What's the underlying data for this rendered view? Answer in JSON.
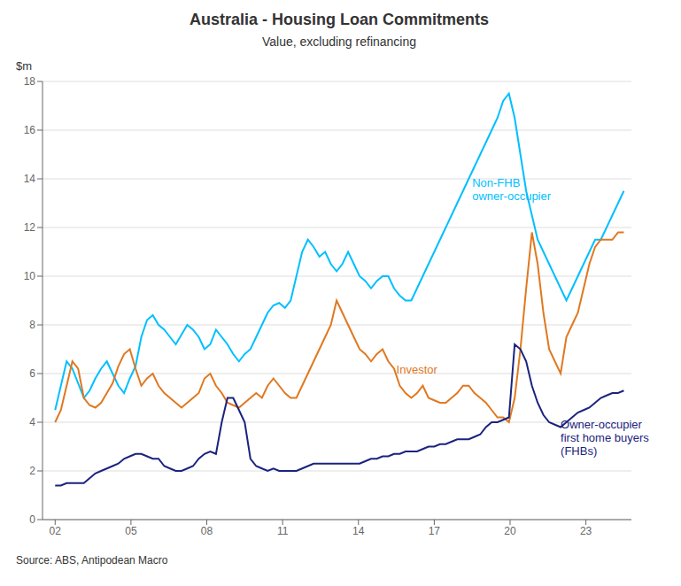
{
  "chart_data": {
    "type": "line",
    "title": "Australia - Housing Loan Commitments",
    "subtitle": "Value, excluding refinancing",
    "ylabel": "$m",
    "source": "Source: ABS, Antipodean Macro",
    "x": [
      2002,
      2002.2272727273,
      2002.4545454545,
      2002.6818181818,
      2002.9090909091,
      2003.1363636364,
      2003.3636363636,
      2003.5909090909,
      2003.8181818182,
      2004.0454545455,
      2004.2727272727,
      2004.5,
      2004.7272727273,
      2004.9545454545,
      2005.1818181818,
      2005.4090909091,
      2005.6363636364,
      2005.8636363636,
      2006.0909090909,
      2006.3181818182,
      2006.5454545455,
      2006.7727272727,
      2007,
      2007.2272727273,
      2007.4545454545,
      2007.6818181818,
      2007.9090909091,
      2008.1363636364,
      2008.3636363636,
      2008.5909090909,
      2008.8181818182,
      2009.0454545455,
      2009.2727272727,
      2009.5,
      2009.7272727273,
      2009.9545454545,
      2010.1818181818,
      2010.4090909091,
      2010.6363636364,
      2010.8636363636,
      2011.0909090909,
      2011.3181818182,
      2011.5454545455,
      2011.7727272727,
      2012,
      2012.2272727273,
      2012.4545454545,
      2012.6818181818,
      2012.9090909091,
      2013.1363636364,
      2013.3636363636,
      2013.5909090909,
      2013.8181818182,
      2014.0454545455,
      2014.2727272727,
      2014.5,
      2014.7272727273,
      2014.9545454545,
      2015.1818181818,
      2015.4090909091,
      2015.6363636364,
      2015.8636363636,
      2016.0909090909,
      2016.3181818182,
      2016.5454545455,
      2016.7727272727,
      2017,
      2017.2272727273,
      2017.4545454545,
      2017.6818181818,
      2017.9090909091,
      2018.1363636364,
      2018.3636363636,
      2018.5909090909,
      2018.8181818182,
      2019.0454545455,
      2019.2727272727,
      2019.5,
      2019.7272727273,
      2019.9545454545,
      2020.1818181818,
      2020.4090909091,
      2020.6363636364,
      2020.8636363636,
      2021.0909090909,
      2021.3181818182,
      2021.5454545455,
      2021.7727272727,
      2022,
      2022.2272727273,
      2022.4545454545,
      2022.6818181818,
      2022.9090909091,
      2023.1363636364,
      2023.3636363636,
      2023.5909090909,
      2023.8181818182,
      2024.0454545455,
      2024.2727272727,
      2024.5
    ],
    "xlim": [
      2001.5,
      2024.8
    ],
    "xticks": [
      {
        "value": 2002,
        "label": "02"
      },
      {
        "value": 2005,
        "label": "05"
      },
      {
        "value": 2008,
        "label": "08"
      },
      {
        "value": 2011,
        "label": "11"
      },
      {
        "value": 2014,
        "label": "14"
      },
      {
        "value": 2017,
        "label": "17"
      },
      {
        "value": 2020,
        "label": "20"
      },
      {
        "value": 2023,
        "label": "23"
      }
    ],
    "ylim": [
      0,
      18
    ],
    "yticks": [
      0,
      2,
      4,
      6,
      8,
      10,
      12,
      14,
      16,
      18
    ],
    "grid": "y",
    "series": [
      {
        "color": "#00BFFF",
        "values": [
          4.5,
          5.5,
          6.5,
          6.2,
          5.6,
          5.0,
          5.3,
          5.8,
          6.2,
          6.5,
          6.0,
          5.5,
          5.2,
          5.8,
          6.3,
          7.5,
          8.2,
          8.4,
          8.0,
          7.8,
          7.5,
          7.2,
          7.6,
          8.0,
          7.8,
          7.5,
          7.0,
          7.2,
          7.8,
          7.5,
          7.2,
          6.8,
          6.5,
          6.8,
          7.0,
          7.5,
          8.0,
          8.5,
          8.8,
          8.9,
          8.7,
          9.0,
          10.0,
          11.0,
          11.5,
          11.2,
          10.8,
          11.0,
          10.5,
          10.2,
          10.5,
          11.0,
          10.5,
          10.0,
          9.8,
          9.5,
          9.8,
          10.0,
          10.0,
          9.5,
          9.2,
          9.0,
          9.0,
          9.5,
          10.0,
          10.5,
          11.0,
          11.5,
          12.0,
          12.5,
          13.0,
          13.5,
          14.0,
          14.5,
          15.0,
          15.5,
          16.0,
          16.5,
          17.2,
          17.5,
          16.5,
          15.0,
          13.5,
          12.5,
          11.5,
          11.0,
          10.5,
          10.0,
          9.5,
          9.0,
          9.5,
          10.0,
          10.5,
          11.0,
          11.5,
          11.5,
          12.0,
          12.5,
          13.0,
          13.5
        ]
      },
      {
        "color": "#E07820",
        "values": [
          4.0,
          4.5,
          5.5,
          6.5,
          6.2,
          5.0,
          4.7,
          4.6,
          4.8,
          5.2,
          5.6,
          6.3,
          6.8,
          7.0,
          6.2,
          5.5,
          5.8,
          6.0,
          5.5,
          5.2,
          5.0,
          4.8,
          4.6,
          4.8,
          5.0,
          5.2,
          5.8,
          6.0,
          5.5,
          5.2,
          4.8,
          4.7,
          4.6,
          4.8,
          5.0,
          5.2,
          5.0,
          5.5,
          5.8,
          5.5,
          5.2,
          5.0,
          5.0,
          5.5,
          6.0,
          6.5,
          7.0,
          7.5,
          8.0,
          9.0,
          8.5,
          8.0,
          7.5,
          7.0,
          6.8,
          6.5,
          6.8,
          7.0,
          6.5,
          6.2,
          5.5,
          5.2,
          5.0,
          5.2,
          5.5,
          5.0,
          4.9,
          4.8,
          4.8,
          5.0,
          5.2,
          5.5,
          5.5,
          5.2,
          5.0,
          4.8,
          4.5,
          4.2,
          4.2,
          4.0,
          5.0,
          7.0,
          9.5,
          11.8,
          10.5,
          8.5,
          7.0,
          6.5,
          6.0,
          7.5,
          8.0,
          8.5,
          9.5,
          10.5,
          11.2,
          11.5,
          11.5,
          11.5,
          11.8,
          11.8
        ]
      },
      {
        "color": "#1A237E",
        "values": [
          1.4,
          1.4,
          1.5,
          1.5,
          1.5,
          1.5,
          1.7,
          1.9,
          2.0,
          2.1,
          2.2,
          2.3,
          2.5,
          2.6,
          2.7,
          2.7,
          2.6,
          2.5,
          2.5,
          2.2,
          2.1,
          2.0,
          2.0,
          2.1,
          2.2,
          2.5,
          2.7,
          2.8,
          2.7,
          4.0,
          5.0,
          5.0,
          4.5,
          4.0,
          2.5,
          2.2,
          2.1,
          2.0,
          2.1,
          2.0,
          2.0,
          2.0,
          2.0,
          2.1,
          2.2,
          2.3,
          2.3,
          2.3,
          2.3,
          2.3,
          2.3,
          2.3,
          2.3,
          2.3,
          2.4,
          2.5,
          2.5,
          2.6,
          2.6,
          2.7,
          2.7,
          2.8,
          2.8,
          2.8,
          2.9,
          3.0,
          3.0,
          3.1,
          3.1,
          3.2,
          3.3,
          3.3,
          3.3,
          3.4,
          3.5,
          3.8,
          4.0,
          4.0,
          4.1,
          4.2,
          7.2,
          7.0,
          6.5,
          5.5,
          4.8,
          4.3,
          4.0,
          3.9,
          3.8,
          4.0,
          4.2,
          4.4,
          4.5,
          4.6,
          4.8,
          5.0,
          5.1,
          5.2,
          5.2,
          5.3
        ]
      }
    ],
    "annotations": [
      {
        "text": "Non-FHB\nowner-occupier",
        "x": 2018.5,
        "y": 13.5,
        "color": "#00BFFF"
      },
      {
        "text": "Investor",
        "x": 2015.5,
        "y": 6.1,
        "color": "#E07820"
      },
      {
        "text": "Owner-occupier\nfirst home buyers\n(FHBs)",
        "x": 2022.0,
        "y": 3.3,
        "color": "#1A237E"
      }
    ]
  }
}
